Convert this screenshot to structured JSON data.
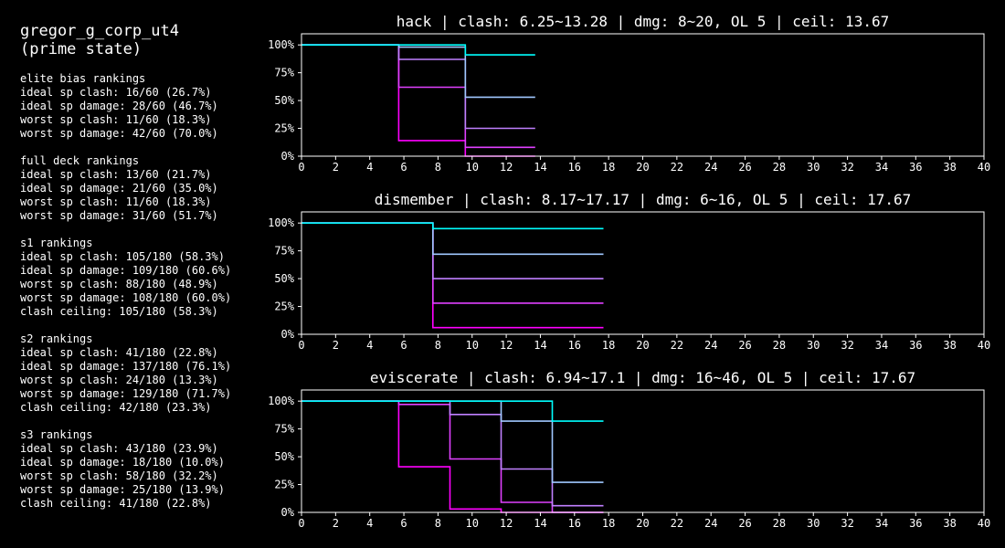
{
  "header": {
    "name": "gregor_g_corp_ut4",
    "state": "(prime state)"
  },
  "rankings": [
    {
      "title": "elite bias rankings",
      "lines": [
        "ideal sp clash: 16/60 (26.7%)",
        "ideal sp damage: 28/60 (46.7%)",
        "worst sp clash: 11/60 (18.3%)",
        "worst sp damage: 42/60 (70.0%)"
      ]
    },
    {
      "title": "full deck rankings",
      "lines": [
        "ideal sp clash: 13/60 (21.7%)",
        "ideal sp damage: 21/60 (35.0%)",
        "worst sp clash: 11/60 (18.3%)",
        "worst sp damage: 31/60 (51.7%)"
      ]
    },
    {
      "title": "s1 rankings",
      "lines": [
        "ideal sp clash: 105/180 (58.3%)",
        "ideal sp damage: 109/180 (60.6%)",
        "worst sp clash: 88/180 (48.9%)",
        "worst sp damage: 108/180 (60.0%)",
        "clash ceiling: 105/180 (58.3%)"
      ]
    },
    {
      "title": "s2 rankings",
      "lines": [
        "ideal sp clash: 41/180 (22.8%)",
        "ideal sp damage: 137/180 (76.1%)",
        "worst sp clash: 24/180 (13.3%)",
        "worst sp damage: 129/180 (71.7%)",
        "clash ceiling: 42/180 (23.3%)"
      ]
    },
    {
      "title": "s3 rankings",
      "lines": [
        "ideal sp clash: 43/180 (23.9%)",
        "ideal sp damage: 18/180 (10.0%)",
        "worst sp clash: 58/180 (32.2%)",
        "worst sp damage: 25/180 (13.9%)",
        "clash ceiling: 41/180 (22.8%)"
      ]
    }
  ],
  "chart_data": [
    {
      "type": "line",
      "title": "hack | clash: 6.25~13.28 | dmg: 8~20, OL 5 | ceil: 13.67",
      "xlim": [
        0,
        40
      ],
      "ylim": [
        0,
        1.1
      ],
      "xticks": [
        "0",
        "2",
        "4",
        "6",
        "8",
        "10",
        "12",
        "14",
        "16",
        "18",
        "20",
        "22",
        "24",
        "26",
        "28",
        "30",
        "32",
        "34",
        "36",
        "38",
        "40"
      ],
      "yticks": [
        {
          "v": 1.0,
          "label": "100%"
        },
        {
          "v": 0.75,
          "label": "75%"
        },
        {
          "v": 0.5,
          "label": "50%"
        },
        {
          "v": 0.25,
          "label": "25%"
        },
        {
          "v": 0.0,
          "label": "0%"
        }
      ],
      "series": [
        {
          "color": "#ff00ff",
          "x": [
            0,
            5.7,
            5.7,
            9.6,
            9.6,
            13.7
          ],
          "y": [
            1.0,
            1.0,
            0.14,
            0.14,
            0.0,
            0.0
          ]
        },
        {
          "color": "#e040ff",
          "x": [
            0,
            5.7,
            5.7,
            9.6,
            9.6,
            13.7
          ],
          "y": [
            1.0,
            1.0,
            0.62,
            0.62,
            0.08,
            0.08
          ]
        },
        {
          "color": "#c080ff",
          "x": [
            0,
            5.7,
            5.7,
            9.6,
            9.6,
            13.7
          ],
          "y": [
            1.0,
            1.0,
            0.87,
            0.87,
            0.25,
            0.25
          ]
        },
        {
          "color": "#a0c8ff",
          "x": [
            0,
            5.7,
            5.7,
            9.6,
            9.6,
            13.7
          ],
          "y": [
            1.0,
            1.0,
            0.98,
            0.98,
            0.53,
            0.53
          ]
        },
        {
          "color": "#00ffff",
          "x": [
            0,
            9.6,
            9.6,
            13.7
          ],
          "y": [
            1.0,
            1.0,
            0.91,
            0.91
          ]
        }
      ]
    },
    {
      "type": "line",
      "title": "dismember | clash: 8.17~17.17 | dmg: 6~16, OL 5 | ceil: 17.67",
      "xlim": [
        0,
        40
      ],
      "ylim": [
        0,
        1.1
      ],
      "xticks": [
        "0",
        "2",
        "4",
        "6",
        "8",
        "10",
        "12",
        "14",
        "16",
        "18",
        "20",
        "22",
        "24",
        "26",
        "28",
        "30",
        "32",
        "34",
        "36",
        "38",
        "40"
      ],
      "yticks": [
        {
          "v": 1.0,
          "label": "100%"
        },
        {
          "v": 0.75,
          "label": "75%"
        },
        {
          "v": 0.5,
          "label": "50%"
        },
        {
          "v": 0.25,
          "label": "25%"
        },
        {
          "v": 0.0,
          "label": "0%"
        }
      ],
      "series": [
        {
          "color": "#ff00ff",
          "x": [
            0,
            7.7,
            7.7,
            17.7
          ],
          "y": [
            1.0,
            1.0,
            0.06,
            0.06
          ]
        },
        {
          "color": "#e040ff",
          "x": [
            0,
            7.7,
            7.7,
            17.7
          ],
          "y": [
            1.0,
            1.0,
            0.28,
            0.28
          ]
        },
        {
          "color": "#c080ff",
          "x": [
            0,
            7.7,
            7.7,
            17.7
          ],
          "y": [
            1.0,
            1.0,
            0.5,
            0.5
          ]
        },
        {
          "color": "#a0c8ff",
          "x": [
            0,
            7.7,
            7.7,
            17.7
          ],
          "y": [
            1.0,
            1.0,
            0.72,
            0.72
          ]
        },
        {
          "color": "#00ffff",
          "x": [
            0,
            7.7,
            7.7,
            17.7
          ],
          "y": [
            1.0,
            1.0,
            0.95,
            0.95
          ]
        }
      ]
    },
    {
      "type": "line",
      "title": "eviscerate | clash: 6.94~17.1 | dmg: 16~46, OL 5 | ceil: 17.67",
      "xlim": [
        0,
        40
      ],
      "ylim": [
        0,
        1.1
      ],
      "xticks": [
        "0",
        "2",
        "4",
        "6",
        "8",
        "10",
        "12",
        "14",
        "16",
        "18",
        "20",
        "22",
        "24",
        "26",
        "28",
        "30",
        "32",
        "34",
        "36",
        "38",
        "40"
      ],
      "yticks": [
        {
          "v": 1.0,
          "label": "100%"
        },
        {
          "v": 0.75,
          "label": "75%"
        },
        {
          "v": 0.5,
          "label": "50%"
        },
        {
          "v": 0.25,
          "label": "25%"
        },
        {
          "v": 0.0,
          "label": "0%"
        }
      ],
      "series": [
        {
          "color": "#ff00ff",
          "x": [
            0,
            5.7,
            5.7,
            8.7,
            8.7,
            11.7,
            11.7,
            17.7
          ],
          "y": [
            1.0,
            1.0,
            0.41,
            0.41,
            0.03,
            0.03,
            0.0,
            0.0
          ]
        },
        {
          "color": "#e040ff",
          "x": [
            0,
            5.7,
            5.7,
            8.7,
            8.7,
            11.7,
            11.7,
            14.7,
            14.7,
            17.7
          ],
          "y": [
            1.0,
            1.0,
            0.97,
            0.97,
            0.48,
            0.48,
            0.09,
            0.09,
            0.0,
            0.0
          ]
        },
        {
          "color": "#c080ff",
          "x": [
            0,
            8.7,
            8.7,
            11.7,
            11.7,
            14.7,
            14.7,
            17.7
          ],
          "y": [
            1.0,
            1.0,
            0.88,
            0.88,
            0.39,
            0.39,
            0.06,
            0.06
          ]
        },
        {
          "color": "#a0c8ff",
          "x": [
            0,
            11.7,
            11.7,
            14.7,
            14.7,
            17.7
          ],
          "y": [
            1.0,
            1.0,
            0.82,
            0.82,
            0.27,
            0.27
          ]
        },
        {
          "color": "#00ffff",
          "x": [
            0,
            14.7,
            14.7,
            17.7
          ],
          "y": [
            1.0,
            1.0,
            0.82,
            0.82
          ]
        }
      ]
    }
  ]
}
